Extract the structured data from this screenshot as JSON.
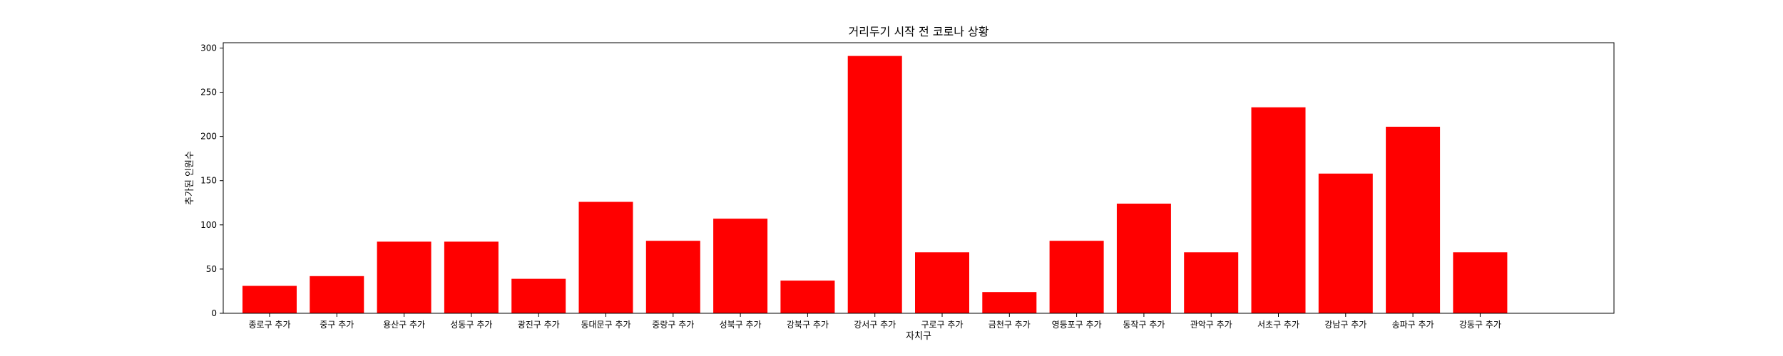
{
  "chart_data": {
    "type": "bar",
    "title": "거리두기 시작 전 코로나 상황",
    "xlabel": "자치구",
    "ylabel": "추가된 인원수",
    "categories": [
      "종로구 추가",
      "중구 추가",
      "용산구 추가",
      "성동구 추가",
      "광진구 추가",
      "동대문구 추가",
      "중랑구 추가",
      "성북구 추가",
      "강북구 추가",
      "강서구 추가",
      "구로구 추가",
      "금천구 추가",
      "영등포구 추가",
      "동작구 추가",
      "관악구 추가",
      "서초구 추가",
      "강남구 추가",
      "송파구 추가",
      "강동구 추가"
    ],
    "values": [
      31,
      42,
      81,
      81,
      39,
      126,
      82,
      107,
      37,
      291,
      69,
      24,
      82,
      124,
      69,
      233,
      158,
      211,
      69
    ],
    "ylim": [
      0,
      306
    ],
    "yticks": [
      0,
      50,
      100,
      150,
      200,
      250,
      300
    ],
    "bar_color": "#ff0000",
    "grid": false
  }
}
